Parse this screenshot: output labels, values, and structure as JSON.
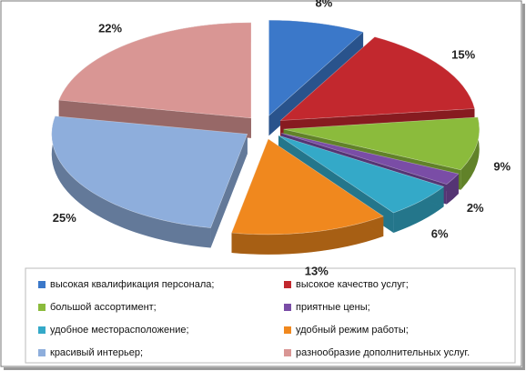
{
  "chart_data": {
    "type": "pie",
    "categories": [
      "высокая квалификация персонала;",
      "высокое качество услуг;",
      "большой ассортимент;",
      "приятные цены;",
      "удобное месторасположение;",
      "удобный режим работы;",
      "красивый  интерьер;",
      "разнообразие дополнительных услуг."
    ],
    "values": [
      8,
      15,
      9,
      2,
      6,
      13,
      25,
      22
    ],
    "value_labels": [
      "8%",
      "15%",
      "9%",
      "2%",
      "6%",
      "13%",
      "25%",
      "22%"
    ],
    "colors": [
      "#3b78c9",
      "#c2282e",
      "#8bbb3c",
      "#7a4da6",
      "#34a9c8",
      "#f0881e",
      "#8eaedc",
      "#d99694"
    ]
  }
}
